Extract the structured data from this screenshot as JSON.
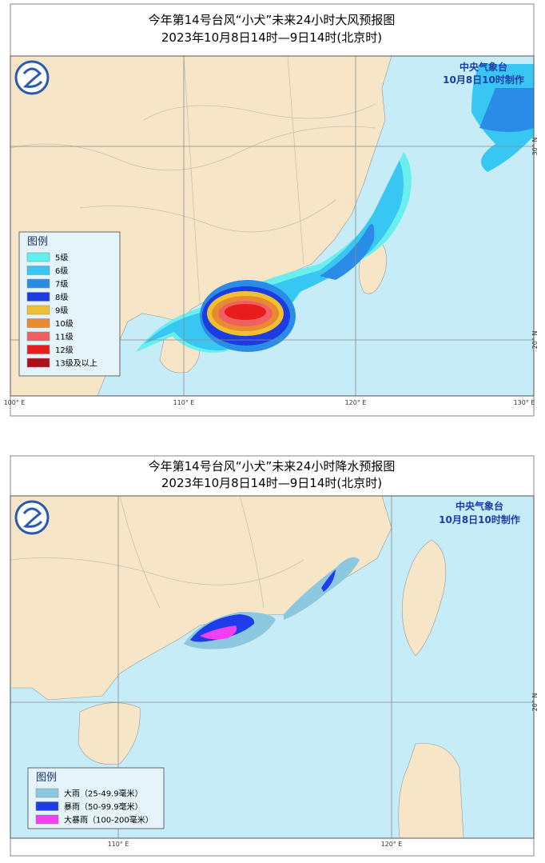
{
  "maps": [
    {
      "title": "今年第14号台风“小犬”未来24小时大风预报图",
      "subtitle": "2023年10月8日14时—9日14时(北京时)",
      "agency": "中央气象台",
      "issued": "10月8日10时制作",
      "legend": {
        "title": "图例",
        "items": [
          {
            "label": "5级",
            "color": "#5ff0f0"
          },
          {
            "label": "6级",
            "color": "#38c6f2"
          },
          {
            "label": "7级",
            "color": "#2a8ce6"
          },
          {
            "label": "8级",
            "color": "#1a3ce0"
          },
          {
            "label": "9级",
            "color": "#f0c030"
          },
          {
            "label": "10级",
            "color": "#e88a30"
          },
          {
            "label": "11级",
            "color": "#f06060"
          },
          {
            "label": "12级",
            "color": "#e81c1c"
          },
          {
            "label": "13级及以上",
            "color": "#b0101c"
          }
        ]
      },
      "lon_labels": [
        "100° E",
        "110° E",
        "120° E",
        "130° E"
      ],
      "lat_labels": [
        "30° N",
        "20° N"
      ]
    },
    {
      "title": "今年第14号台风“小犬”未来24小时降水预报图",
      "subtitle": "2023年10月8日14时—9日14时(北京时)",
      "agency": "中央气象台",
      "issued": "10月8日10时制作",
      "legend": {
        "title": "图例",
        "items": [
          {
            "label": "大雨（25-49.9毫米）",
            "color": "#8cc8e0"
          },
          {
            "label": "暴雨（50-99.9毫米）",
            "color": "#1e3ce8"
          },
          {
            "label": "大暴雨（100-200毫米）",
            "color": "#f040f0"
          }
        ]
      },
      "lon_labels": [
        "110° E",
        "120° E"
      ],
      "lat_labels": [
        "20° N"
      ]
    }
  ]
}
